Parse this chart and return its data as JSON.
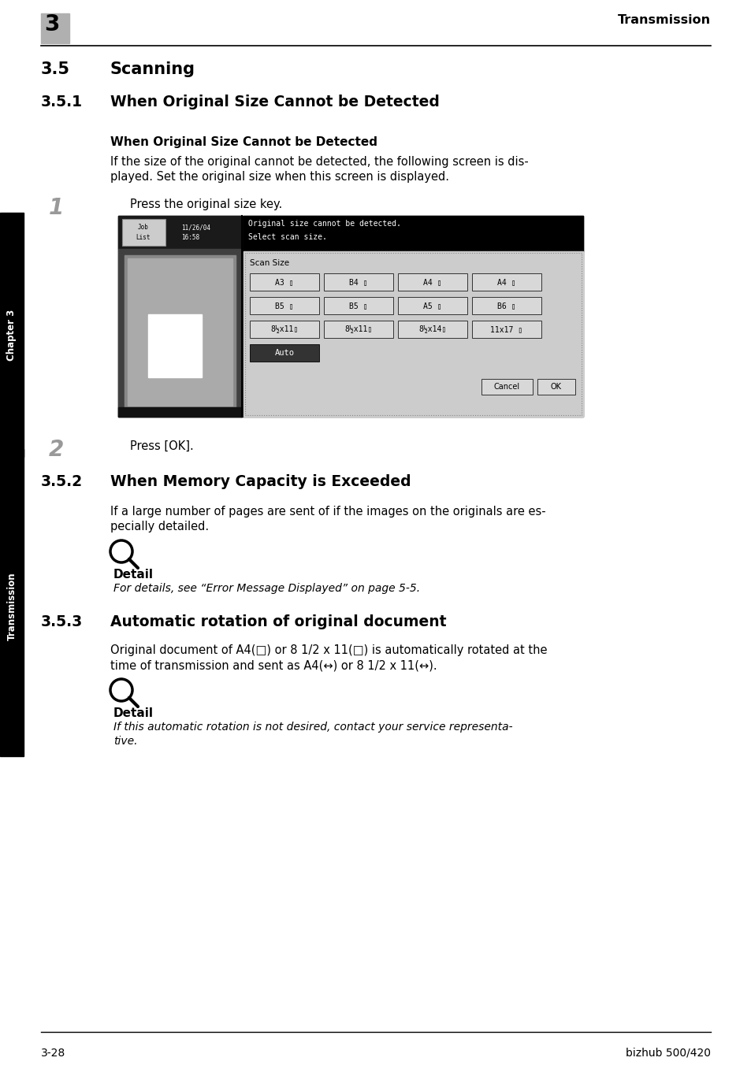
{
  "bg_color": "#ffffff",
  "header_chapter_bg": "#b0b0b0",
  "header_chapter_num": "3",
  "header_title": "Transmission",
  "footer_left": "3-28",
  "footer_right": "bizhub 500/420",
  "side_chapter": "Chapter 3",
  "side_transmission": "Transmission",
  "section_35_num": "3.5",
  "section_35_title": "Scanning",
  "section_351_num": "3.5.1",
  "section_351_title": "When Original Size Cannot be Detected",
  "subsection_bold": "When Original Size Cannot be Detected",
  "para1_l1": "If the size of the original cannot be detected, the following screen is dis-",
  "para1_l2": "played. Set the original size when this screen is displayed.",
  "step1_num": "1",
  "step1_text": "Press the original size key.",
  "step2_num": "2",
  "step2_text": "Press [OK].",
  "section_352_num": "3.5.2",
  "section_352_title": "When Memory Capacity is Exceeded",
  "para2_l1": "If a large number of pages are sent of if the images on the originals are es-",
  "para2_l2": "pecially detailed.",
  "detail1_label": "Detail",
  "detail1_text": "For details, see “Error Message Displayed” on page 5-5.",
  "section_353_num": "3.5.3",
  "section_353_title": "Automatic rotation of original document",
  "para3_l1": "Original document of A4(□) or 8 1/2 x 11(□) is automatically rotated at the",
  "para3_l2": "time of transmission and sent as A4(↔) or 8 1/2 x 11(↔).",
  "detail2_label": "Detail",
  "detail2_l1": "If this automatic rotation is not desired, contact your service representa-",
  "detail2_l2": "tive.",
  "screen_btn_row1": [
    "A3 ▯",
    "B4 ▯",
    "A4 ▯",
    "A4 ▯"
  ],
  "screen_btn_row2": [
    "B5 ▯",
    "B5 ▯",
    "A5 ▯",
    "B6 ▯"
  ],
  "screen_btn_row3": [
    "8½x11▯",
    "8½x11▯",
    "8½x14▯",
    "11x17 ▯"
  ],
  "screen_btn_auto": "Auto",
  "screen_cancel": "Cancel",
  "screen_ok": "OK",
  "lmargin": 52,
  "indent": 140,
  "rmargin": 902
}
